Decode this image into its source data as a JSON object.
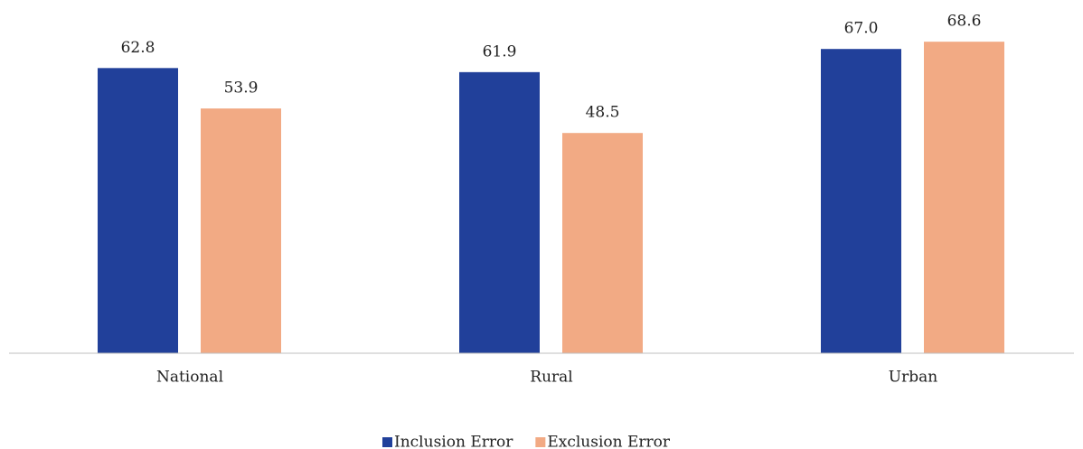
{
  "chart_data": {
    "type": "bar",
    "categories": [
      "National",
      "Rural",
      "Urban"
    ],
    "series": [
      {
        "name": "Inclusion Error",
        "color": "#21409a",
        "values": [
          62.8,
          61.9,
          67.0
        ],
        "value_labels": [
          "62.8",
          "61.9",
          "67.0"
        ]
      },
      {
        "name": "Exclusion Error",
        "color": "#f2aa84",
        "values": [
          53.9,
          48.5,
          68.6
        ],
        "value_labels": [
          "53.9",
          "48.5",
          "68.6"
        ]
      }
    ],
    "ylim": [
      0,
      75
    ],
    "legend": "bottom"
  }
}
